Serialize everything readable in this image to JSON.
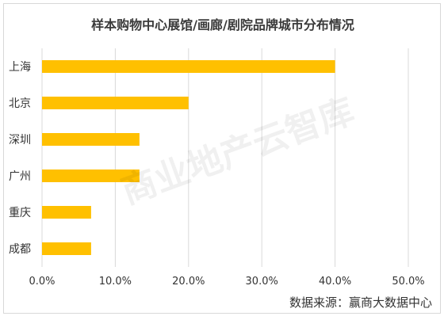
{
  "chart_data": {
    "type": "bar",
    "orientation": "horizontal",
    "title": "样本购物中心展馆/画廊/剧院品牌城市分布情况",
    "categories": [
      "上海",
      "北京",
      "深圳",
      "广州",
      "重庆",
      "成都"
    ],
    "values": [
      0.4,
      0.2,
      0.133,
      0.133,
      0.067,
      0.067
    ],
    "xlim": [
      0,
      0.5
    ],
    "xticks": [
      "0.0%",
      "10.0%",
      "20.0%",
      "30.0%",
      "40.0%",
      "50.0%"
    ],
    "xlabel": "",
    "ylabel": "",
    "grid": true,
    "bar_color": "#FFC000",
    "grid_color": "#d9d9d9"
  },
  "watermark": "商业地产云智库",
  "source": "数据来源：赢商大数据中心"
}
